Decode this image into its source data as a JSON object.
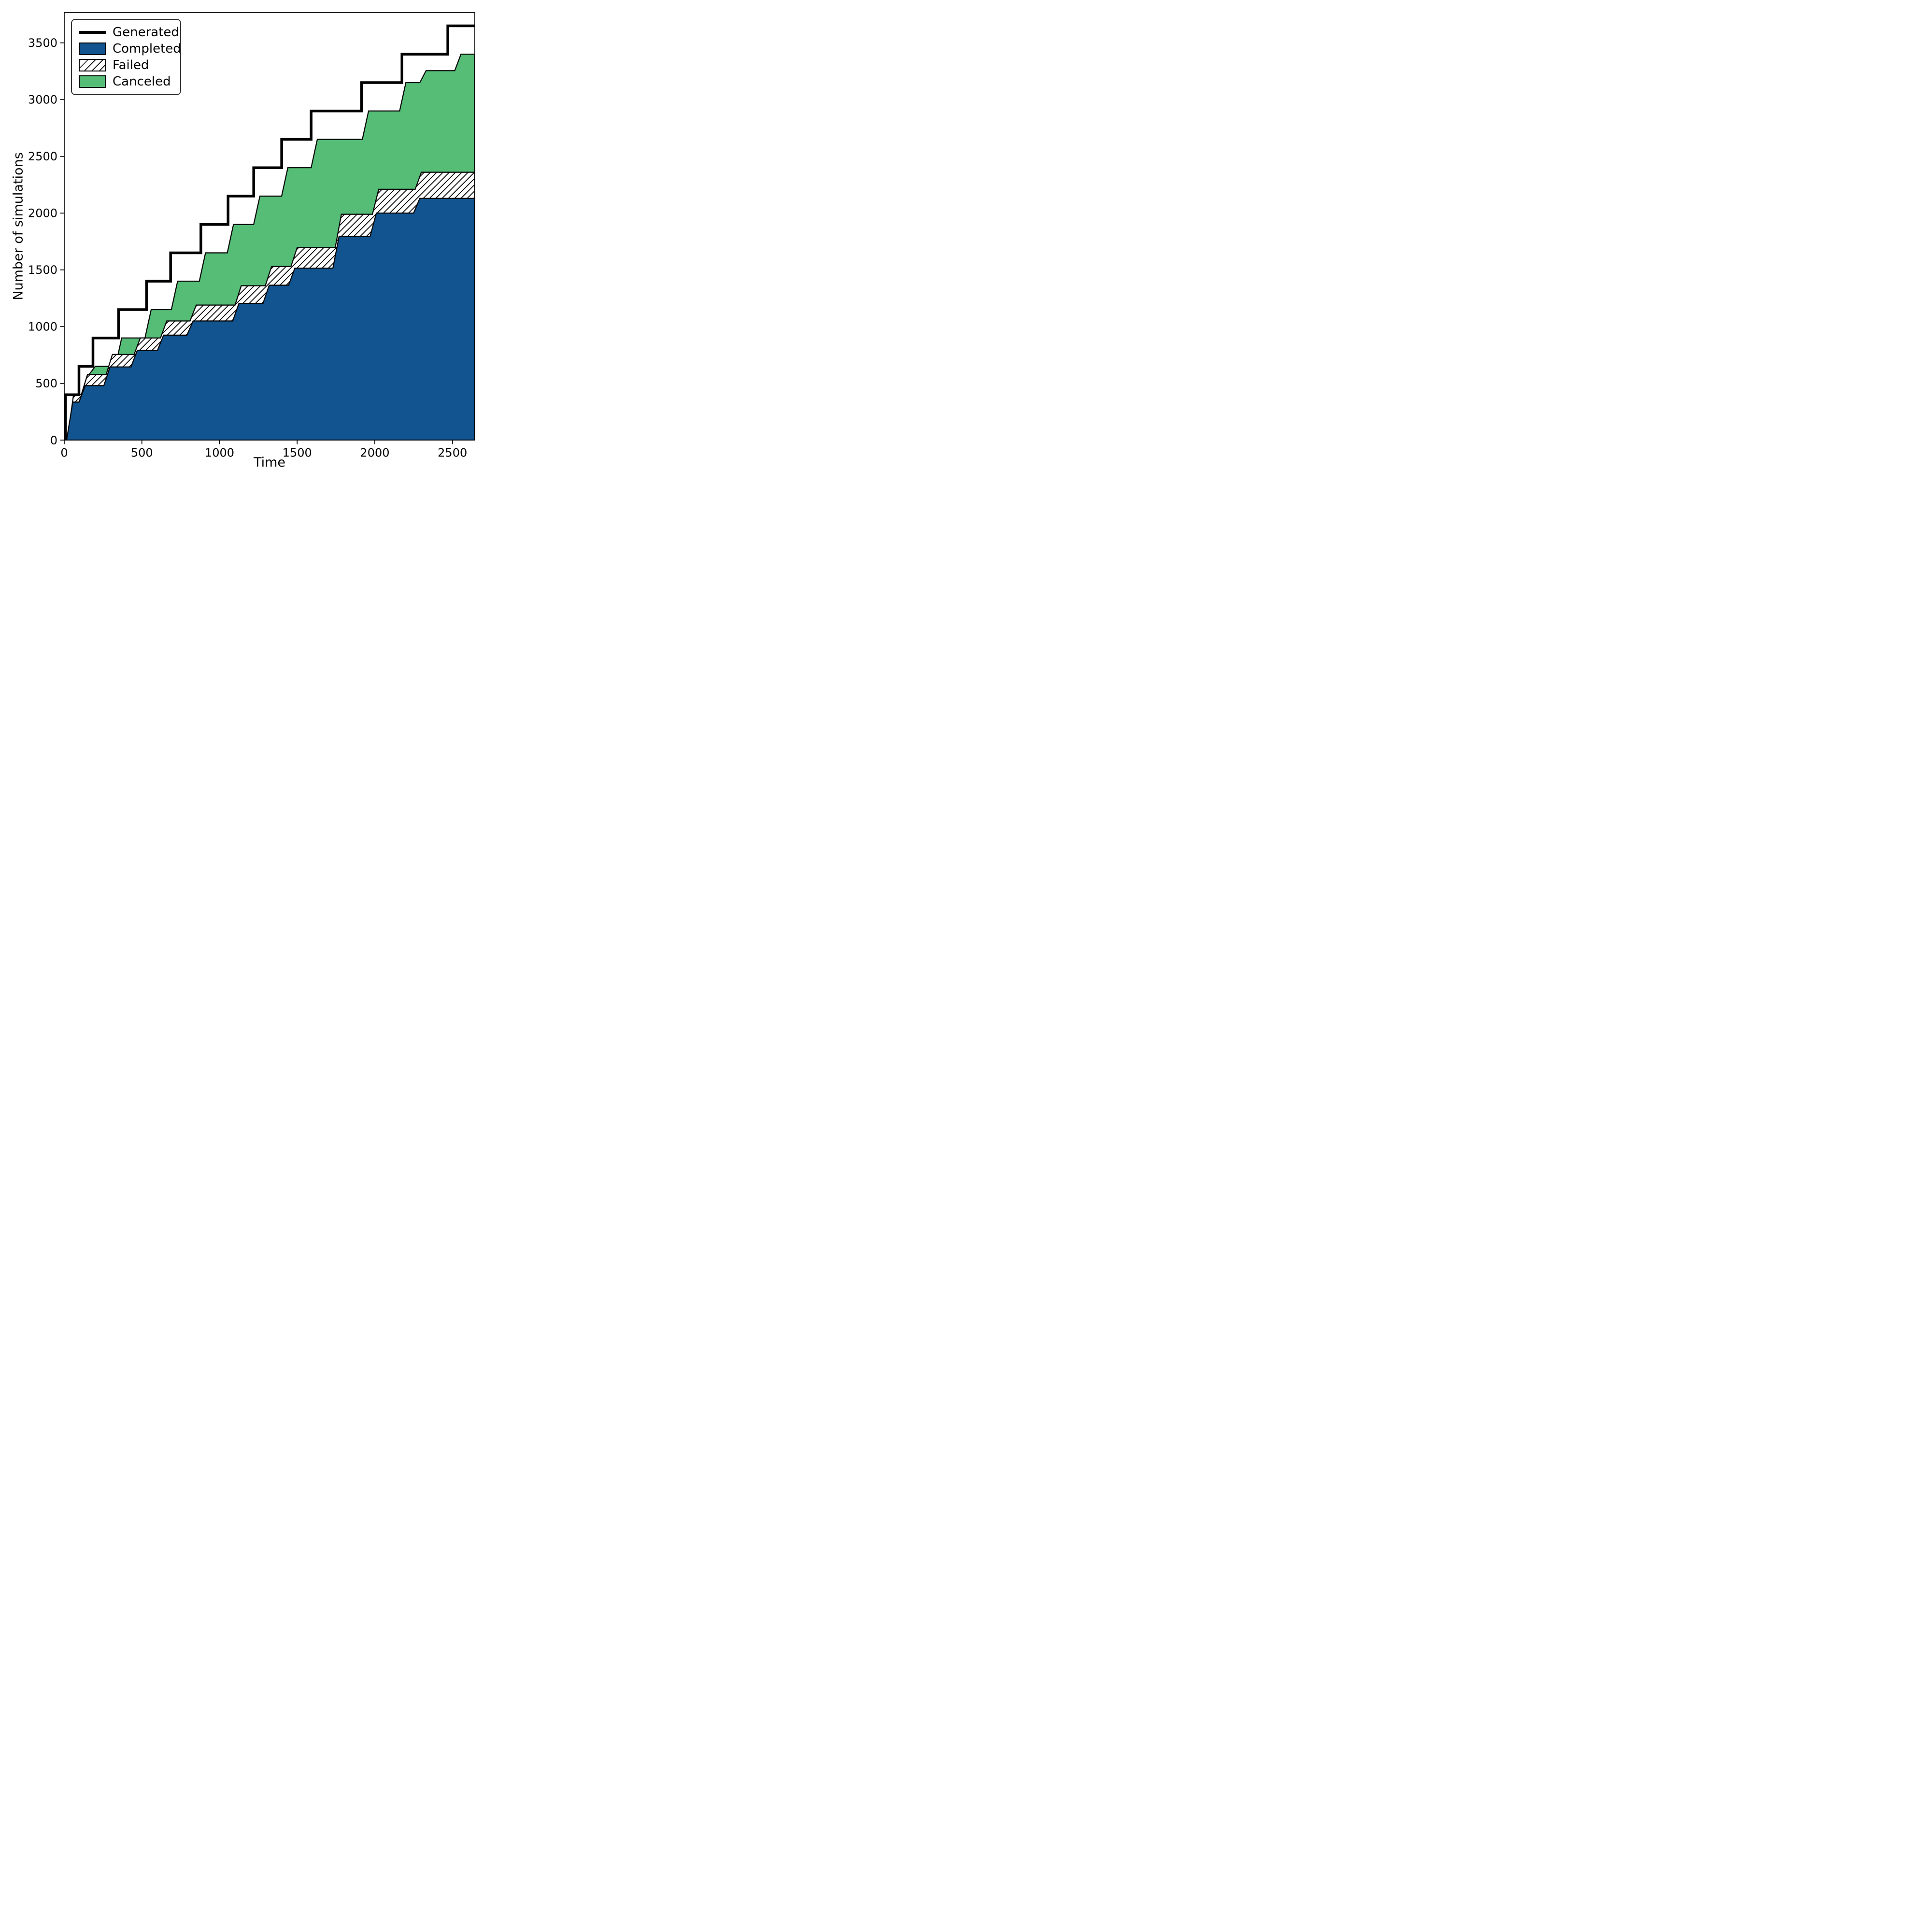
{
  "axes": {
    "xlabel": "Time",
    "ylabel": "Number of simulations",
    "xlim": [
      0,
      2644
    ],
    "ylim": [
      0,
      3768
    ],
    "x_ticks": [
      0,
      500,
      1000,
      1500,
      2000,
      2500
    ],
    "y_ticks": [
      0,
      500,
      1000,
      1500,
      2000,
      2500,
      3000,
      3500
    ],
    "grid": false,
    "spine_color": "#000000",
    "background": "#ffffff"
  },
  "legend": {
    "position": "upper-left",
    "border_color": "#333333",
    "items": [
      {
        "label": "Generated",
        "swatch": "line",
        "color": "#000000"
      },
      {
        "label": "Completed",
        "swatch": "patch",
        "color": "#11548f"
      },
      {
        "label": "Failed",
        "swatch": "hatch",
        "color": "#ffffff"
      },
      {
        "label": "Canceled",
        "swatch": "patch",
        "color": "#55bd76"
      }
    ]
  },
  "chart_data": {
    "type": "area",
    "subtype": "cumulative-step-stack",
    "title": "",
    "xlabel": "Time",
    "ylabel": "Number of simulations",
    "xlim": [
      0,
      2644
    ],
    "ylim": [
      0,
      3768
    ],
    "legend_position": "upper left",
    "note": "Each series is a cumulative count vs time. Area series points are the cumulative stack-top boundary [t, count]; Failed top = Completed+Failed; Canceled top = Completed+Failed+Canceled. Risers are slightly sloped (~40 time units).",
    "series": [
      {
        "name": "Canceled",
        "style": "area",
        "fill": "#55bd76",
        "edge": "#000000",
        "riser": 40,
        "points": [
          [
            12,
            0
          ],
          [
            60,
            400
          ],
          [
            150,
            578
          ],
          [
            200,
            650
          ],
          [
            370,
            900
          ],
          [
            560,
            1150
          ],
          [
            730,
            1400
          ],
          [
            910,
            1650
          ],
          [
            1090,
            1900
          ],
          [
            1260,
            2150
          ],
          [
            1440,
            2400
          ],
          [
            1630,
            2650
          ],
          [
            1960,
            2900
          ],
          [
            2200,
            3150
          ],
          [
            2330,
            3255
          ],
          [
            2555,
            3400
          ],
          [
            2644,
            3400
          ]
        ]
      },
      {
        "name": "Failed",
        "style": "area-hatch",
        "fill": "#ffffff",
        "hatch": "/",
        "edge": "#000000",
        "riser": 40,
        "points": [
          [
            12,
            0
          ],
          [
            60,
            400
          ],
          [
            150,
            578
          ],
          [
            310,
            755
          ],
          [
            490,
            900
          ],
          [
            660,
            1050
          ],
          [
            850,
            1190
          ],
          [
            1140,
            1360
          ],
          [
            1335,
            1530
          ],
          [
            1500,
            1695
          ],
          [
            1785,
            1990
          ],
          [
            2025,
            2210
          ],
          [
            2300,
            2360
          ],
          [
            2644,
            2360
          ]
        ]
      },
      {
        "name": "Completed",
        "style": "area",
        "fill": "#11548f",
        "edge": "#000000",
        "riser": 40,
        "points": [
          [
            10,
            0
          ],
          [
            55,
            335
          ],
          [
            135,
            480
          ],
          [
            295,
            645
          ],
          [
            470,
            790
          ],
          [
            640,
            925
          ],
          [
            830,
            1050
          ],
          [
            1125,
            1205
          ],
          [
            1320,
            1365
          ],
          [
            1485,
            1515
          ],
          [
            1770,
            1795
          ],
          [
            2010,
            2000
          ],
          [
            2290,
            2130
          ],
          [
            2644,
            2130
          ]
        ]
      },
      {
        "name": "Generated",
        "style": "line",
        "color": "#000000",
        "line_width": 5.5,
        "riser": 0,
        "points": [
          [
            0,
            0
          ],
          [
            8,
            400
          ],
          [
            95,
            650
          ],
          [
            185,
            900
          ],
          [
            350,
            1150
          ],
          [
            530,
            1400
          ],
          [
            685,
            1650
          ],
          [
            880,
            1900
          ],
          [
            1055,
            2150
          ],
          [
            1220,
            2400
          ],
          [
            1400,
            2650
          ],
          [
            1590,
            2900
          ],
          [
            1915,
            3150
          ],
          [
            2175,
            3400
          ],
          [
            2470,
            3650
          ],
          [
            2644,
            3650
          ]
        ]
      }
    ]
  }
}
